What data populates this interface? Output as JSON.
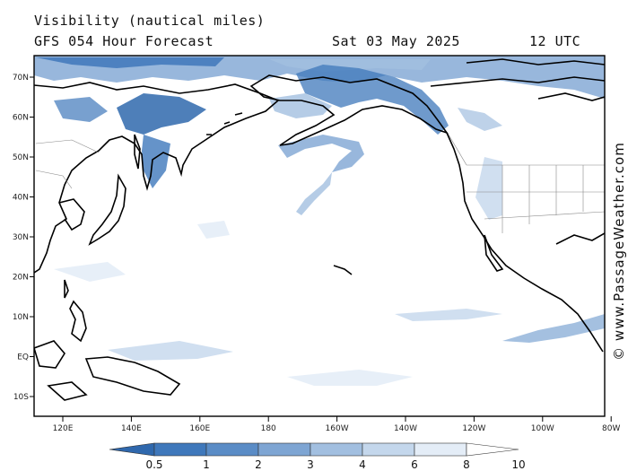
{
  "title": "Visibility (nautical miles)",
  "subtitle": "GFS 054 Hour Forecast",
  "date": "Sat 03 May 2025",
  "time": "12 UTC",
  "watermark": "© www.PassageWeather.com",
  "lat_labels": [
    "70N",
    "60N",
    "50N",
    "40N",
    "30N",
    "20N",
    "10N",
    "EQ",
    "10S"
  ],
  "lon_labels": [
    "120E",
    "140E",
    "160E",
    "180",
    "160W",
    "140W",
    "120W",
    "100W",
    "80W"
  ],
  "legend": {
    "labels": [
      "0.5",
      "1",
      "2",
      "3",
      "4",
      "6",
      "8",
      "10"
    ],
    "colors": [
      "#2f68ad",
      "#3f78bb",
      "#5a8cc6",
      "#7ea5d3",
      "#a2bfe0",
      "#c4d7ec",
      "#e4edf7",
      "#ffffff"
    ]
  },
  "colors": {
    "land_outline": "#000000",
    "borders": "#888888",
    "fog_dark": "#3f78bb",
    "fog_light": "#a2bfe0"
  }
}
